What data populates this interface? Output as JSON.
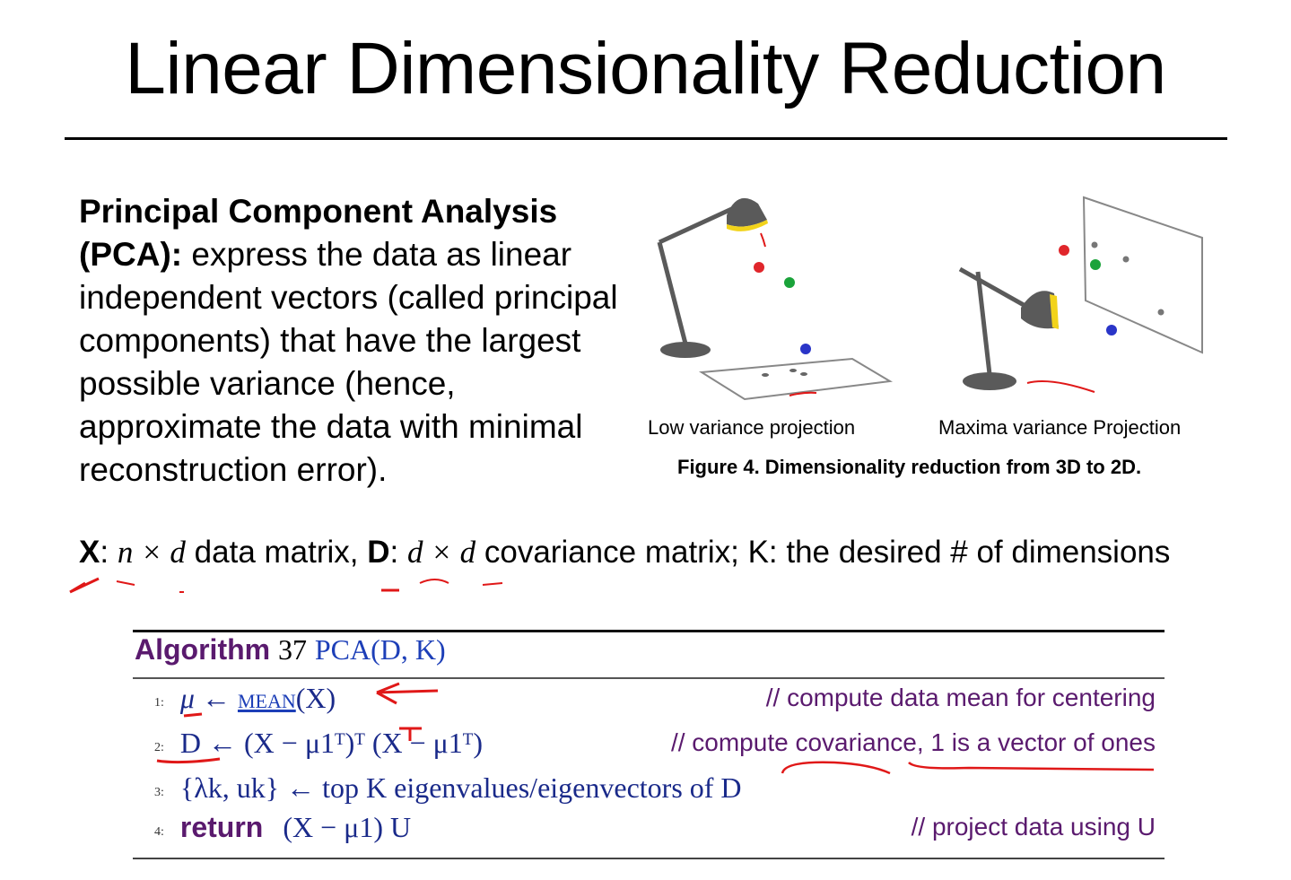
{
  "slide": {
    "title": "Linear Dimensionality Reduction"
  },
  "pca": {
    "heading": "Principal Component Analysis (PCA):",
    "body": "express the data as linear independent vectors (called principal components) that have the largest possible variance (hence, approximate the data with minimal reconstruction error)."
  },
  "figure": {
    "left_label": "Low variance projection",
    "right_label": "Maxima variance Projection",
    "caption": "Figure 4. Dimensionality reduction from 3D to 2D.",
    "colors": {
      "lamp": "#5a5a5a",
      "bulb": "#f2d31a",
      "red_ball": "#e0262b",
      "green_ball": "#1aa33a",
      "blue_ball": "#2a35c8",
      "annotation": "#e01818"
    }
  },
  "notation": {
    "x_symbol": "X",
    "x_dims": "n × d",
    "x_desc": "data matrix,",
    "d_symbol": "D",
    "d_dims": "d × d",
    "d_desc": "covariance matrix; K: the desired # of dimensions"
  },
  "algorithm": {
    "keyword": "Algorithm",
    "number": "37",
    "name": "PCA(D, K)",
    "lines": [
      {
        "num": "1:",
        "code_pre": "μ ← ",
        "code_fn": "mean",
        "code_post": "(X)",
        "comment": "// compute data mean for centering"
      },
      {
        "num": "2:",
        "code": "D ← (X − μ1ᵀ)ᵀ (X − μ1ᵀ)",
        "comment": "// compute covariance, 1 is a vector of ones"
      },
      {
        "num": "3:",
        "code": "{λk, uk} ← top K eigenvalues/eigenvectors of D",
        "comment": ""
      },
      {
        "num": "4:",
        "code_kw": "return",
        "code": "(X − μ1) U",
        "comment": "// project data using U"
      }
    ]
  }
}
